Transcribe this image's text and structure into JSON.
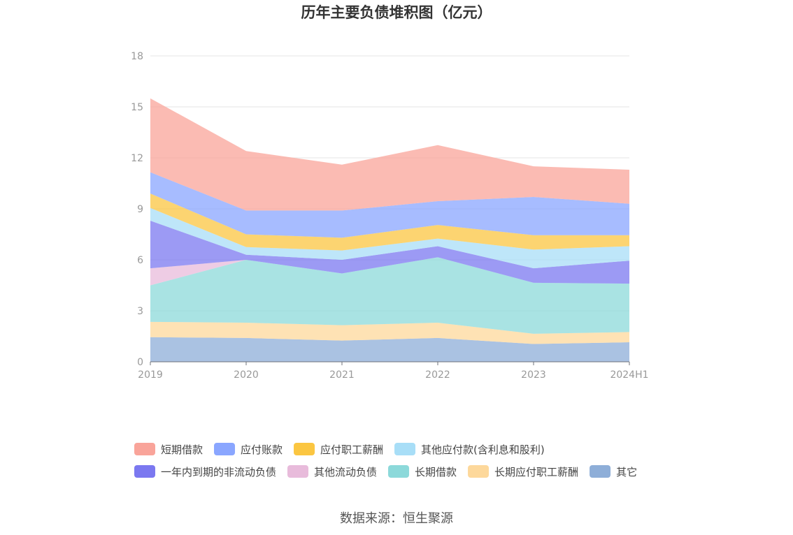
{
  "chart_data": {
    "type": "area",
    "stacked": true,
    "title": "历年主要负债堆积图（亿元）",
    "x": [
      "2019",
      "2020",
      "2021",
      "2022",
      "2023",
      "2024H1"
    ],
    "ylim": [
      0,
      18
    ],
    "yticks": [
      0,
      3,
      6,
      9,
      12,
      15,
      18
    ],
    "grid": true,
    "legend_position": "bottom",
    "series": [
      {
        "name": "其它",
        "color": "#8eaed8",
        "values": [
          1.45,
          1.4,
          1.25,
          1.4,
          1.05,
          1.15
        ]
      },
      {
        "name": "长期应付职工薪酬",
        "color": "#fdd89b",
        "values": [
          0.9,
          0.9,
          0.9,
          0.9,
          0.6,
          0.6
        ]
      },
      {
        "name": "长期借款",
        "color": "#8cd9da",
        "values": [
          2.15,
          3.7,
          3.05,
          3.85,
          3.0,
          2.85
        ]
      },
      {
        "name": "其他流动负债",
        "color": "#e8bbdb",
        "values": [
          1.0,
          0.0,
          0.0,
          0.0,
          0.0,
          0.0
        ]
      },
      {
        "name": "一年内到期的非流动负债",
        "color": "#7b78f0",
        "values": [
          2.8,
          0.3,
          0.8,
          0.65,
          0.85,
          1.35
        ]
      },
      {
        "name": "其他应付款(含利息和股利)",
        "color": "#a8def7",
        "values": [
          0.75,
          0.45,
          0.55,
          0.45,
          1.1,
          0.85
        ]
      },
      {
        "name": "应付职工薪酬",
        "color": "#fbc641",
        "values": [
          0.85,
          0.75,
          0.75,
          0.8,
          0.85,
          0.65
        ]
      },
      {
        "name": "应付账款",
        "color": "#8aa6ff",
        "values": [
          1.25,
          1.4,
          1.6,
          1.4,
          2.25,
          1.85
        ]
      },
      {
        "name": "短期借款",
        "color": "#f9a49a",
        "values": [
          4.35,
          3.5,
          2.7,
          3.3,
          1.8,
          2.0
        ]
      }
    ],
    "legend_order": [
      "短期借款",
      "应付账款",
      "应付职工薪酬",
      "其他应付款(含利息和股利)",
      "一年内到期的非流动负债",
      "其他流动负债",
      "长期借款",
      "长期应付职工薪酬",
      "其它"
    ]
  },
  "source": "数据来源：恒生聚源"
}
